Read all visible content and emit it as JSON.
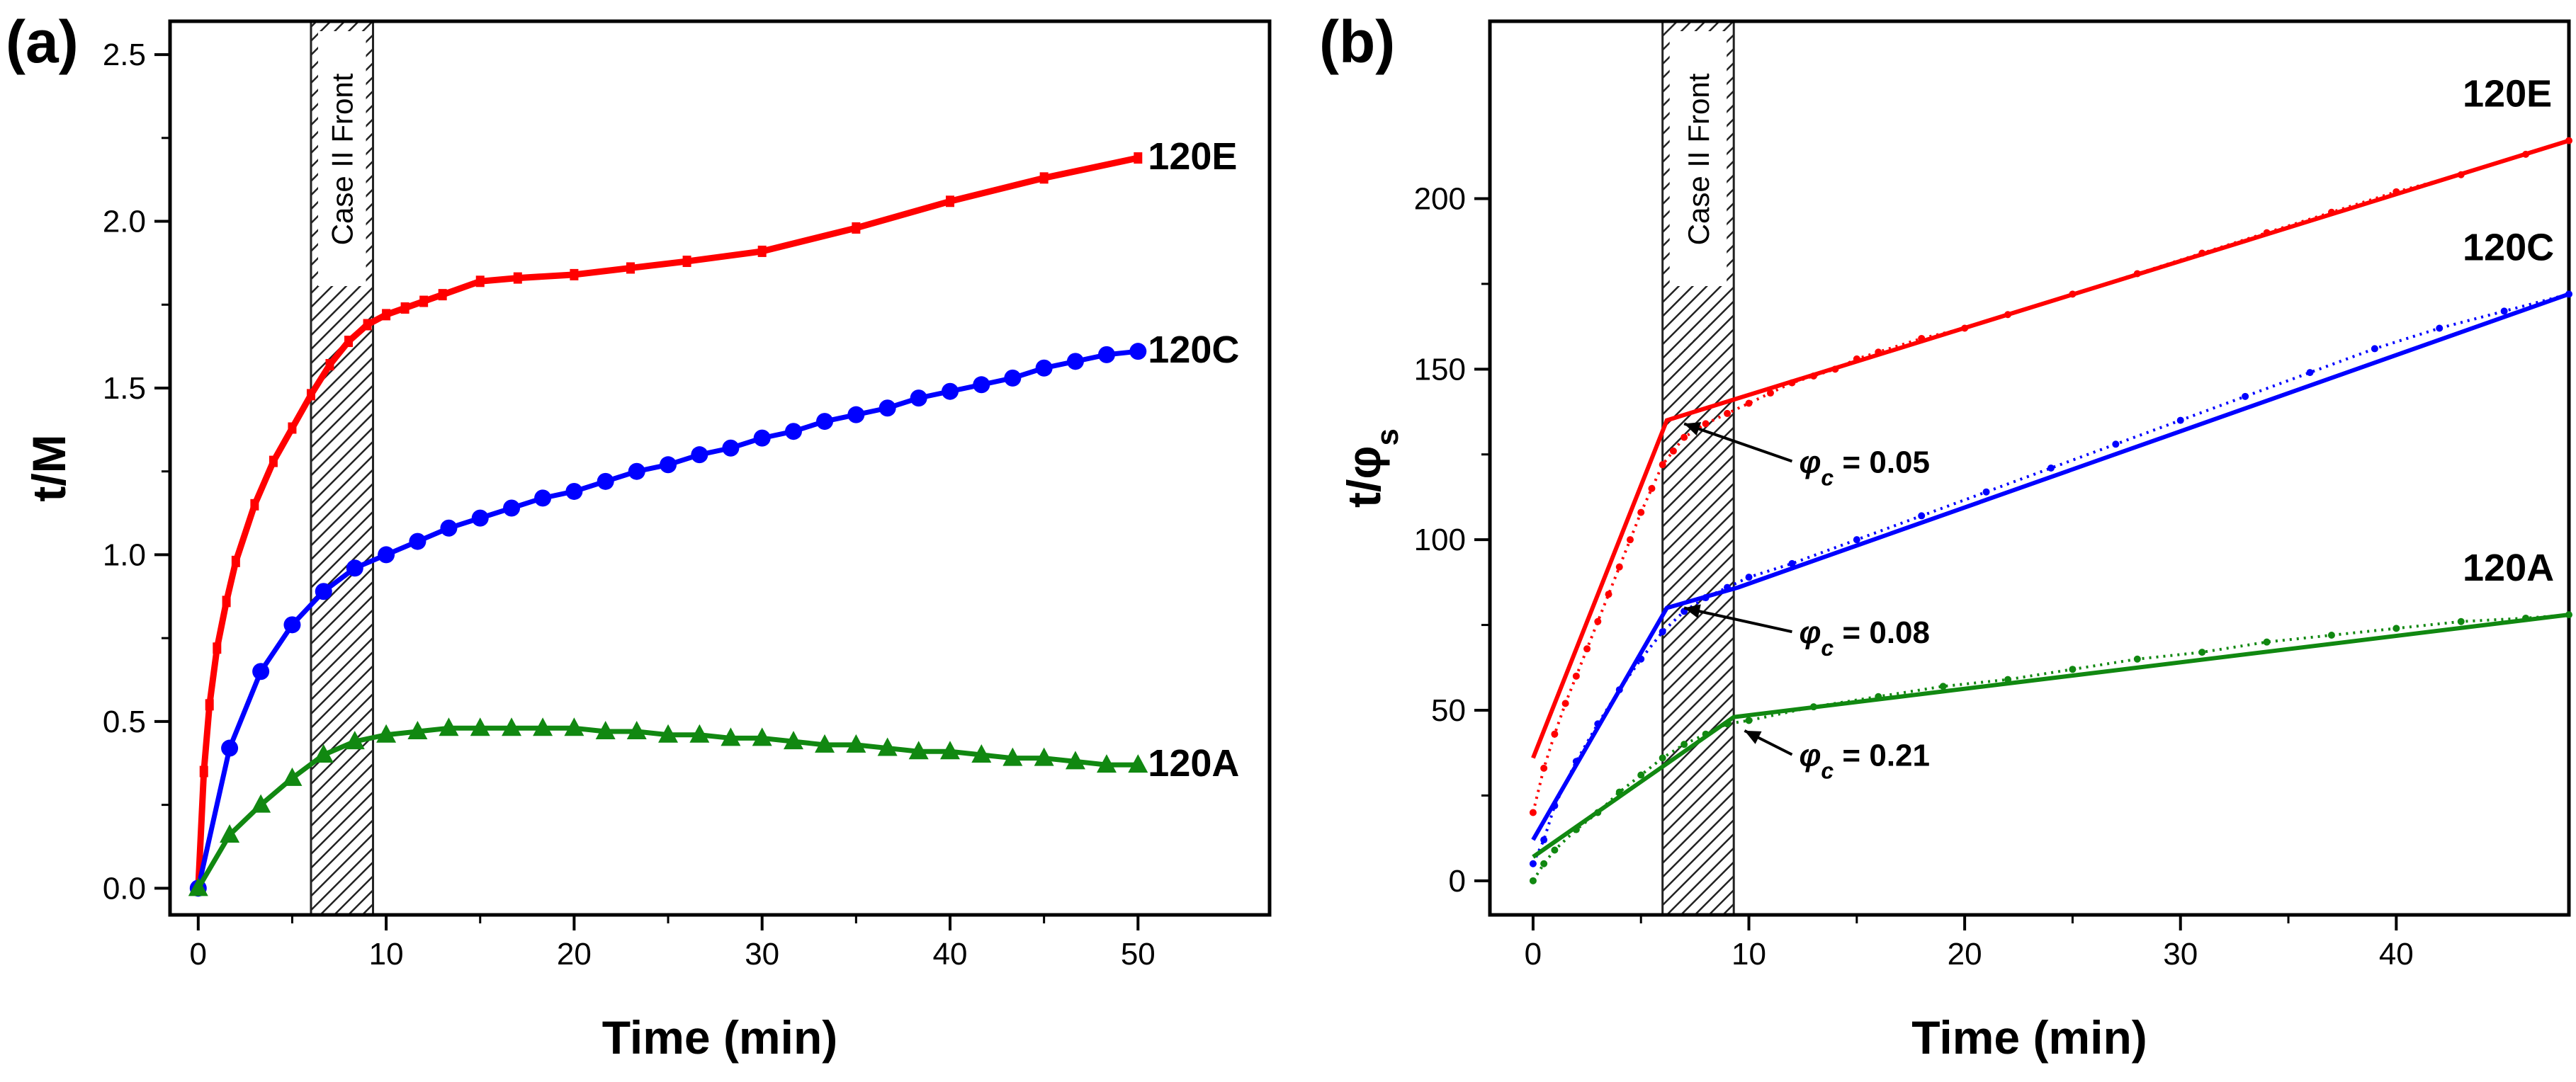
{
  "figure": {
    "panels": [
      "(a)",
      "(b)"
    ]
  },
  "chart_data": [
    {
      "type": "line",
      "panel_label": "(a)",
      "title": "",
      "xlabel": "Time (min)",
      "ylabel": "t/M",
      "xlim": [
        -1.5,
        57
      ],
      "ylim": [
        -0.08,
        2.6
      ],
      "xticks": [
        0,
        10,
        20,
        30,
        40,
        50
      ],
      "xtick_labels": [
        "0",
        "10",
        "20",
        "30",
        "40",
        "50"
      ],
      "yticks": [
        0.0,
        0.5,
        1.0,
        1.5,
        2.0,
        2.5
      ],
      "ytick_labels": [
        "0.0",
        "0.5",
        "1.0",
        "1.5",
        "2.0",
        "2.5"
      ],
      "band": {
        "label": "Case II Front",
        "x_range": [
          6,
          9.3
        ]
      },
      "series": [
        {
          "name": "120E",
          "color": "#ff0000",
          "marker": "dense",
          "x": [
            0,
            0.3,
            0.6,
            1,
            1.5,
            2,
            3,
            4,
            5,
            6,
            7,
            8,
            9,
            10,
            11,
            12,
            13,
            15,
            17,
            20,
            23,
            26,
            30,
            35,
            40,
            45,
            50
          ],
          "y": [
            0,
            0.35,
            0.55,
            0.72,
            0.86,
            0.98,
            1.15,
            1.28,
            1.38,
            1.48,
            1.57,
            1.64,
            1.69,
            1.72,
            1.74,
            1.76,
            1.78,
            1.82,
            1.83,
            1.84,
            1.86,
            1.88,
            1.91,
            1.98,
            2.06,
            2.13,
            2.19
          ]
        },
        {
          "name": "120C",
          "color": "#0000ff",
          "marker": "circle",
          "x": [
            0,
            1.67,
            3.33,
            5,
            6.67,
            8.33,
            10,
            11.67,
            13.33,
            15,
            16.67,
            18.33,
            20,
            21.67,
            23.33,
            25,
            26.67,
            28.33,
            30,
            31.67,
            33.33,
            35,
            36.67,
            38.33,
            40,
            41.67,
            43.33,
            45,
            46.67,
            48.33,
            50
          ],
          "y": [
            0,
            0.42,
            0.65,
            0.79,
            0.89,
            0.96,
            1.0,
            1.04,
            1.08,
            1.11,
            1.14,
            1.17,
            1.19,
            1.22,
            1.25,
            1.27,
            1.3,
            1.32,
            1.35,
            1.37,
            1.4,
            1.42,
            1.44,
            1.47,
            1.49,
            1.51,
            1.53,
            1.56,
            1.58,
            1.6,
            1.61
          ]
        },
        {
          "name": "120A",
          "color": "#118811",
          "marker": "triangle",
          "x": [
            0,
            1.67,
            3.33,
            5,
            6.67,
            8.33,
            10,
            11.67,
            13.33,
            15,
            16.67,
            18.33,
            20,
            21.67,
            23.33,
            25,
            26.67,
            28.33,
            30,
            31.67,
            33.33,
            35,
            36.67,
            38.33,
            40,
            41.67,
            43.33,
            45,
            46.67,
            48.33,
            50
          ],
          "y": [
            0,
            0.16,
            0.25,
            0.33,
            0.4,
            0.44,
            0.46,
            0.47,
            0.48,
            0.48,
            0.48,
            0.48,
            0.48,
            0.47,
            0.47,
            0.46,
            0.46,
            0.45,
            0.45,
            0.44,
            0.43,
            0.43,
            0.42,
            0.41,
            0.41,
            0.4,
            0.39,
            0.39,
            0.38,
            0.37,
            0.37
          ]
        }
      ]
    },
    {
      "type": "line",
      "panel_label": "(b)",
      "title": "",
      "xlabel": "Time (min)",
      "ylabel": "t/φ",
      "ylabel_sub": "s",
      "xlim": [
        -2,
        48
      ],
      "ylim": [
        -10,
        252
      ],
      "xticks": [
        0,
        10,
        20,
        30,
        40
      ],
      "xtick_labels": [
        "0",
        "10",
        "20",
        "30",
        "40"
      ],
      "yticks": [
        0,
        50,
        100,
        150,
        200
      ],
      "ytick_labels": [
        "0",
        "50",
        "100",
        "150",
        "200"
      ],
      "band": {
        "label": "Case II Front",
        "x_range": [
          6,
          9.3
        ]
      },
      "series": [
        {
          "name": "120E",
          "color": "#ff0000",
          "data_x": [
            0,
            0.5,
            1,
            1.5,
            2,
            2.5,
            3,
            3.5,
            4,
            4.5,
            5,
            5.5,
            6,
            6.5,
            7,
            8,
            9,
            10,
            11,
            12,
            13,
            14,
            15,
            16,
            18,
            20,
            22,
            25,
            28,
            31,
            34,
            37,
            40,
            43,
            46,
            48
          ],
          "data_y": [
            20,
            33,
            43,
            52,
            60,
            68,
            76,
            84,
            92,
            100,
            108,
            115,
            122,
            126,
            130,
            134,
            137,
            140,
            143,
            146,
            148,
            150,
            153,
            155,
            159,
            162,
            166,
            172,
            178,
            184,
            190,
            196,
            202,
            207,
            213,
            217
          ],
          "fit_x": [
            0,
            6.2,
            48
          ],
          "fit_y": [
            36,
            135,
            217
          ]
        },
        {
          "name": "120C",
          "color": "#0000ff",
          "data_x": [
            0,
            0.5,
            1,
            2,
            3,
            4,
            5,
            6,
            7,
            8,
            9,
            10,
            12,
            15,
            18,
            21,
            24,
            27,
            30,
            33,
            36,
            39,
            42,
            45,
            48
          ],
          "data_y": [
            5,
            12,
            22,
            35,
            46,
            56,
            65,
            73,
            79,
            83,
            86,
            89,
            93,
            100,
            107,
            114,
            121,
            128,
            135,
            142,
            149,
            156,
            162,
            167,
            172
          ],
          "fit_x": [
            0,
            6.2,
            9.5,
            48
          ],
          "fit_y": [
            12,
            80,
            86,
            172
          ]
        },
        {
          "name": "120A",
          "color": "#118811",
          "data_x": [
            0,
            0.5,
            1,
            2,
            3,
            4,
            5,
            6,
            7,
            8,
            9,
            10,
            13,
            16,
            19,
            22,
            25,
            28,
            31,
            34,
            37,
            40,
            43,
            46,
            48
          ],
          "data_y": [
            0,
            5,
            9,
            15,
            20,
            26,
            31,
            36,
            40,
            43,
            46,
            47,
            51,
            54,
            57,
            59,
            62,
            65,
            67,
            70,
            72,
            74,
            76,
            77,
            78
          ],
          "fit_x": [
            0,
            9.3,
            48
          ],
          "fit_y": [
            7,
            48,
            78
          ]
        }
      ],
      "annotations": [
        {
          "prefix": "φ",
          "sub": "c",
          "text": " = 0.05",
          "from": [
            7.0,
            134
          ],
          "to": [
            12.0,
            123
          ]
        },
        {
          "prefix": "φ",
          "sub": "c",
          "text": " = 0.08",
          "from": [
            7.0,
            80
          ],
          "to": [
            12.0,
            73
          ]
        },
        {
          "prefix": "φ",
          "sub": "c",
          "text": " = 0.21",
          "from": [
            9.8,
            44
          ],
          "to": [
            12.0,
            37
          ]
        }
      ]
    }
  ]
}
